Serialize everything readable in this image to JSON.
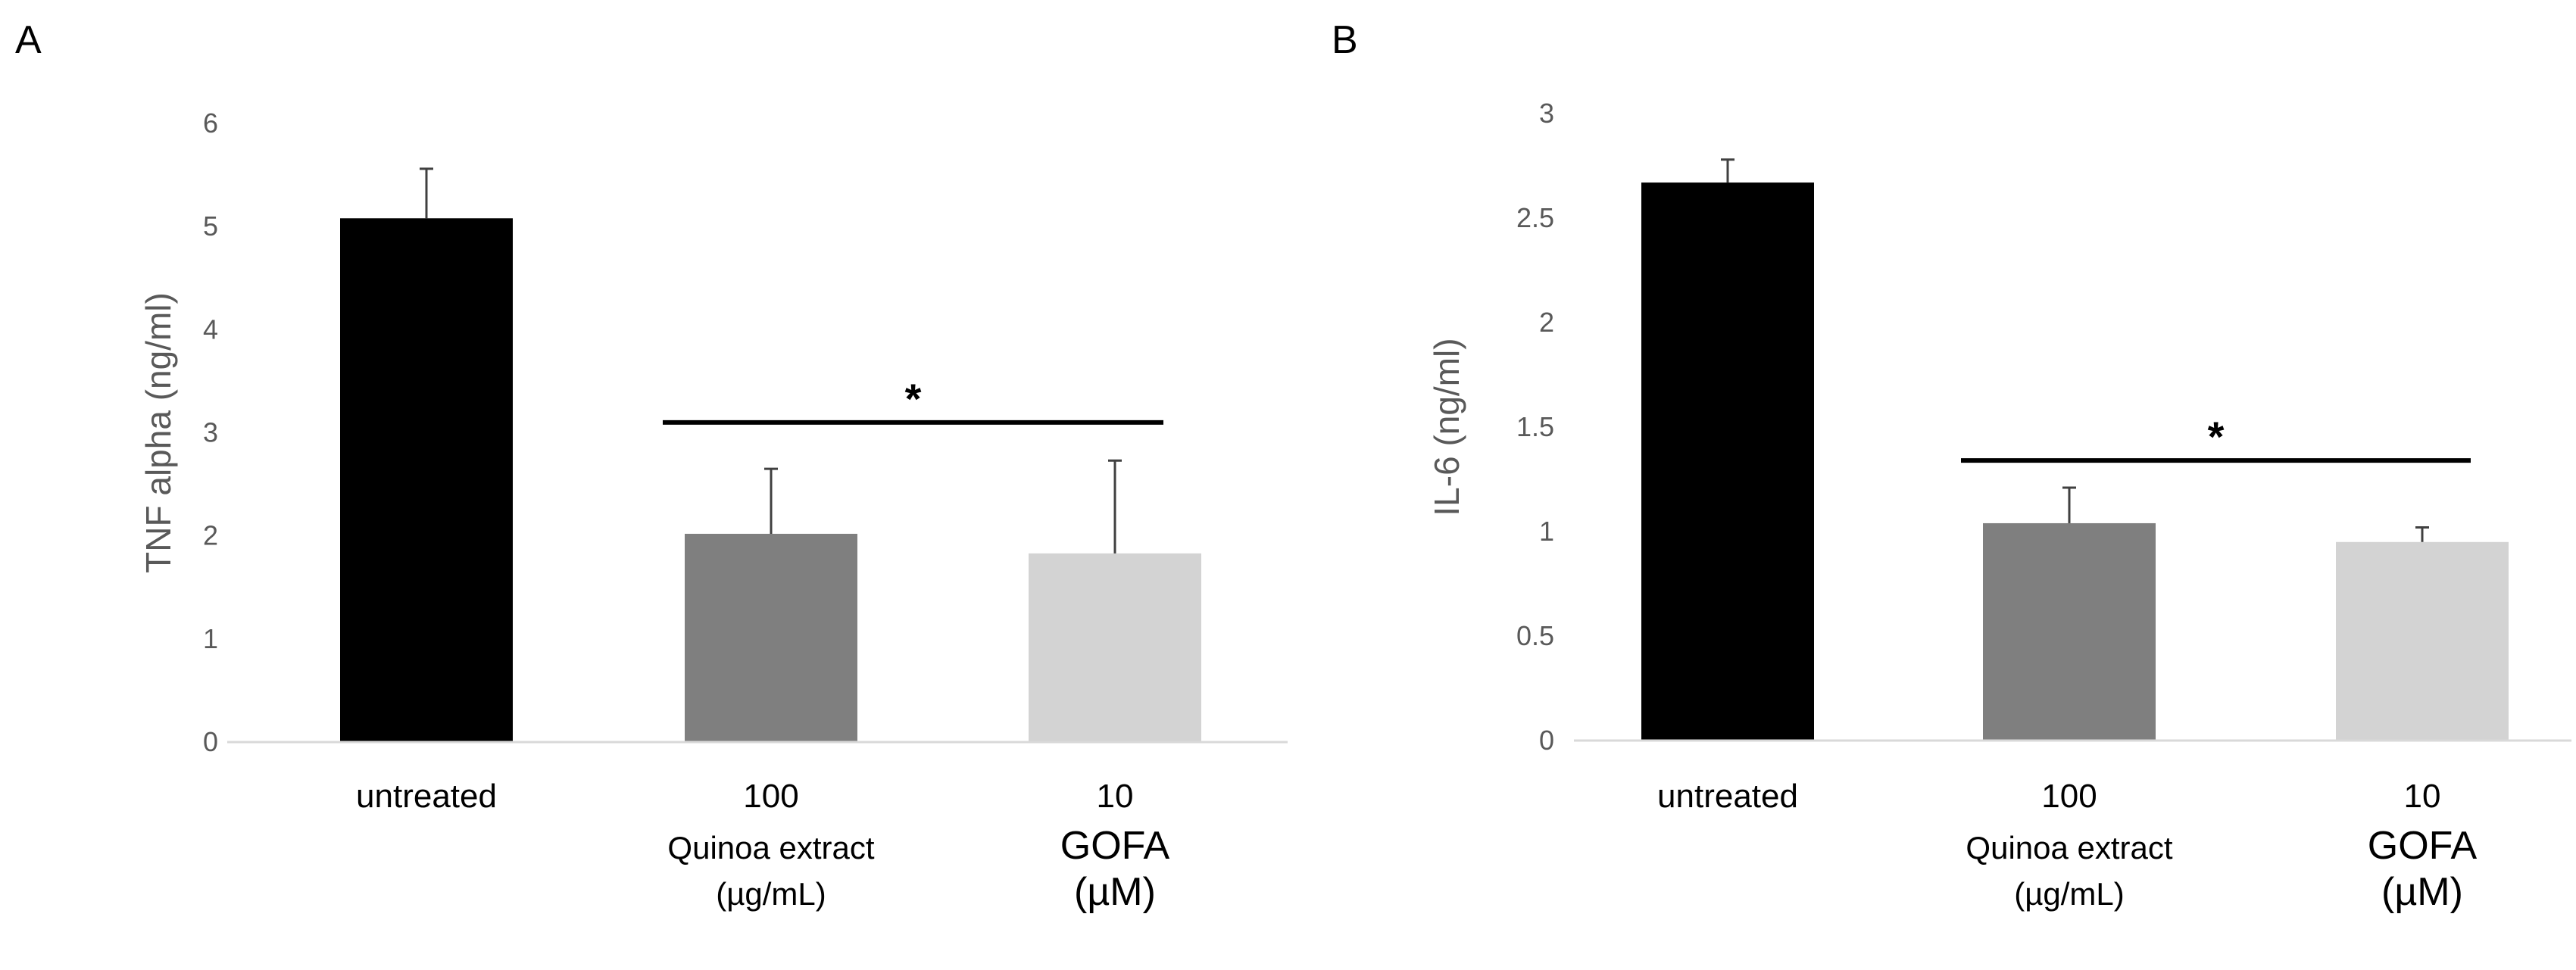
{
  "panel_labels": [
    "A",
    "B"
  ],
  "colors": {
    "untreated": "#000000",
    "quinoa": "#7f7f7f",
    "gofa": "#d3d3d3",
    "axis": "#d9d9d9",
    "tick_text": "#595959",
    "error_bar": "#404040",
    "sig_line": "#000000"
  },
  "chart_data": [
    {
      "type": "bar",
      "panel": "A",
      "title": "",
      "xlabel": "",
      "ylabel": "TNF alpha (ng/ml)",
      "ylim": [
        0,
        6
      ],
      "yticks": [
        "0",
        "1",
        "2",
        "3",
        "4",
        "5",
        "6"
      ],
      "grid": false,
      "categories": [
        {
          "lines": [
            "untreated"
          ]
        },
        {
          "lines": [
            "100",
            "Quinoa extract",
            "(µg/mL)"
          ]
        },
        {
          "lines": [
            "10",
            "GOFA",
            "(µM)"
          ]
        }
      ],
      "values": [
        5.08,
        2.02,
        1.83
      ],
      "errors": [
        0.48,
        0.63,
        0.9
      ],
      "significance": {
        "from_bar": 1,
        "to_bar": 2,
        "label": "*",
        "y": 3.1
      }
    },
    {
      "type": "bar",
      "panel": "B",
      "title": "",
      "xlabel": "",
      "ylabel": "IL-6 (ng/ml)",
      "ylim": [
        0,
        3
      ],
      "yticks": [
        "0",
        "0.5",
        "1",
        "1.5",
        "2",
        "2.5",
        "3"
      ],
      "grid": false,
      "categories": [
        {
          "lines": [
            "untreated"
          ]
        },
        {
          "lines": [
            "100",
            "Quinoa extract",
            "(µg/mL)"
          ]
        },
        {
          "lines": [
            "10",
            "GOFA",
            "(µM)"
          ]
        }
      ],
      "values": [
        2.67,
        1.04,
        0.95
      ],
      "errors": [
        0.11,
        0.17,
        0.07
      ],
      "significance": {
        "from_bar": 1,
        "to_bar": 2,
        "label": "*",
        "y": 1.34
      }
    }
  ]
}
